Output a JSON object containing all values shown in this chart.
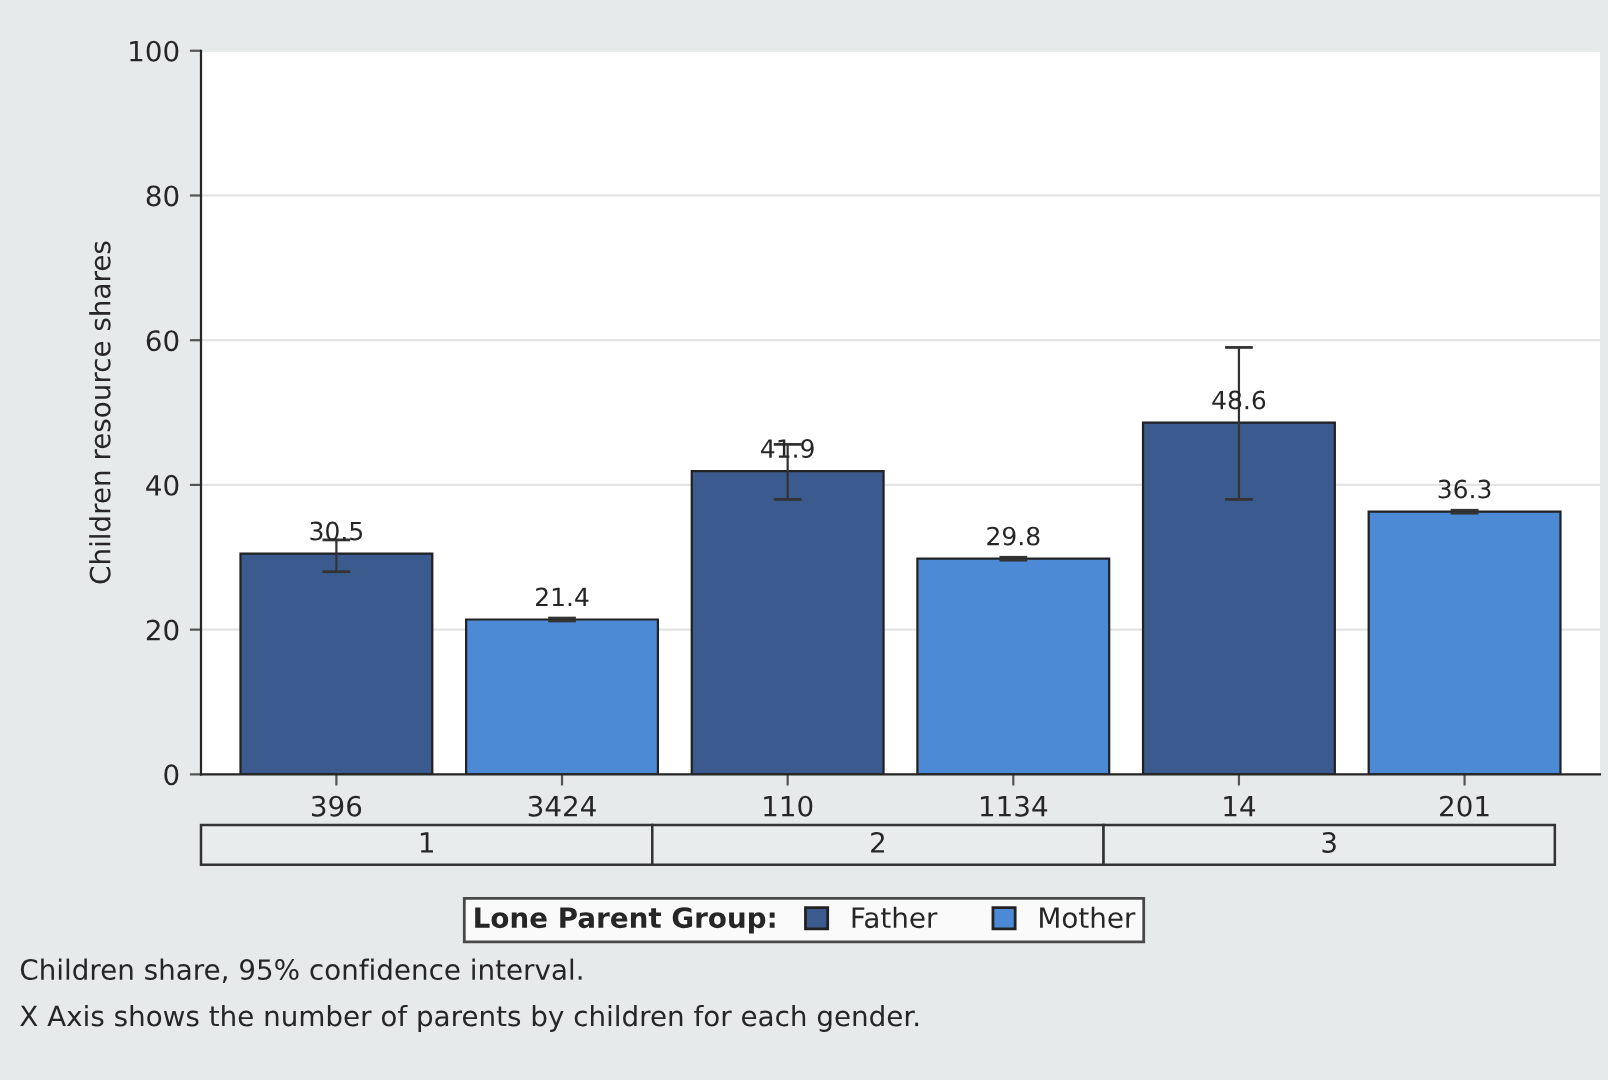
{
  "chart_data": {
    "type": "bar",
    "ylabel": "Children resource shares",
    "categories": [
      "396",
      "3424",
      "110",
      "1134",
      "14",
      "201"
    ],
    "series": [
      {
        "name": "Father",
        "color": "#3b5b8e",
        "values": [
          30.5,
          null,
          41.9,
          null,
          48.6,
          null
        ],
        "errors": [
          [
            28.0,
            32.4
          ],
          null,
          [
            38.0,
            45.6
          ],
          null,
          [
            38.0,
            59.0
          ],
          null
        ]
      },
      {
        "name": "Mother",
        "color": "#4d8ad6",
        "values": [
          null,
          21.4,
          null,
          29.8,
          null,
          36.3
        ],
        "errors": [
          null,
          [
            21.2,
            21.6
          ],
          null,
          [
            29.6,
            30.0
          ],
          null,
          [
            36.1,
            36.5
          ]
        ]
      }
    ],
    "data_labels": true,
    "ylim": [
      0,
      100
    ],
    "yticks": [
      0,
      20,
      40,
      60,
      80,
      100
    ],
    "grid": "y",
    "legend": "bottom",
    "legend_title": "Lone Parent Group:",
    "annotations": [
      "1",
      "2",
      "3",
      "Children share, 95% confidence interval.",
      "X Axis shows the number of parents by children for each gender."
    ]
  }
}
